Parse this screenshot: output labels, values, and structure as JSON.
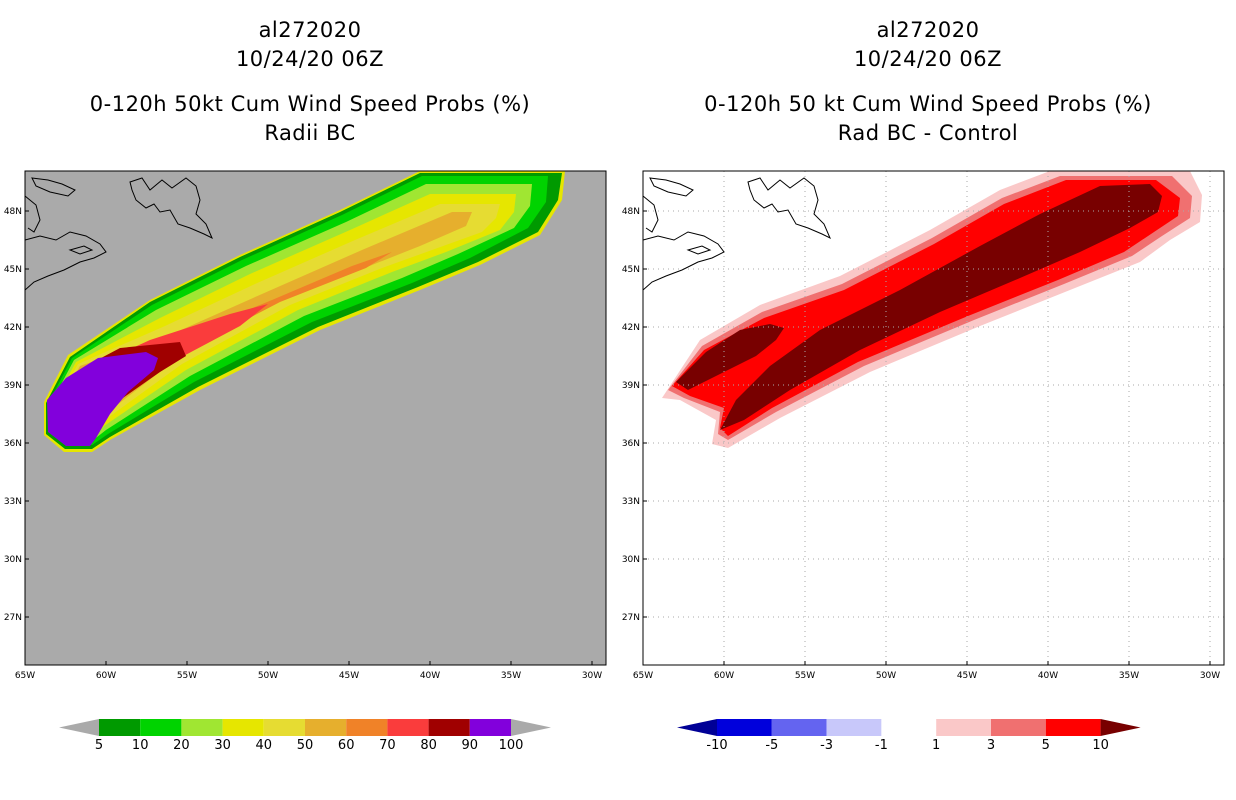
{
  "left_panel": {
    "title_lines": [
      "al272020",
      "10/24/20 06Z",
      "0-120h 50kt Cum Wind Speed Probs (%)",
      "Radii BC"
    ],
    "lat_labels": [
      "48N",
      "45N",
      "42N",
      "39N",
      "36N",
      "33N",
      "30N",
      "27N"
    ],
    "lon_labels": [
      "65W",
      "60W",
      "55W",
      "50W",
      "45W",
      "40W",
      "35W",
      "30W"
    ],
    "colorbar": {
      "labels": [
        "5",
        "10",
        "20",
        "30",
        "40",
        "50",
        "60",
        "70",
        "80",
        "90",
        "100"
      ],
      "colors": [
        "#009a00",
        "#00d300",
        "#a0e632",
        "#e6e600",
        "#e6dc32",
        "#e6af2d",
        "#f08228",
        "#fa3c3c",
        "#a00000",
        "#8200dc"
      ],
      "under_color": "#aaaaaa",
      "over_color": "#aaaaaa"
    }
  },
  "right_panel": {
    "title_lines": [
      "al272020",
      "10/24/20 06Z",
      "0-120h 50 kt Cum Wind Speed Probs (%)",
      "Rad BC - Control"
    ],
    "lat_labels": [
      "48N",
      "45N",
      "42N",
      "39N",
      "36N",
      "33N",
      "30N",
      "27N"
    ],
    "lon_labels": [
      "65W",
      "60W",
      "55W",
      "50W",
      "45W",
      "40W",
      "35W",
      "30W"
    ],
    "colorbar": {
      "labels": [
        "-10",
        "-5",
        "-3",
        "-1",
        "1",
        "3",
        "5",
        "10"
      ],
      "colors": [
        "#0000dc",
        "#6464f0",
        "#c8c8fa",
        "#ffffff",
        "#fac8c8",
        "#f07070",
        "#ff0000"
      ],
      "under_color": "#000096",
      "over_color": "#780000"
    }
  },
  "chart_data": [
    {
      "type": "map",
      "title": "0-120h 50kt Cum Wind Speed Probs (%)",
      "subtitle": "Radii BC",
      "storm": "al272020",
      "time": "10/24/20 06Z",
      "lon_range": [
        -65,
        -29
      ],
      "lat_range": [
        24.5,
        50
      ],
      "contour_levels": [
        5,
        10,
        20,
        30,
        40,
        50,
        60,
        70,
        80,
        90,
        100
      ],
      "background": "#aaaaaa"
    },
    {
      "type": "map",
      "title": "0-120h 50 kt Cum Wind Speed Probs (%)",
      "subtitle": "Rad BC - Control",
      "storm": "al272020",
      "time": "10/24/20 06Z",
      "lon_range": [
        -65,
        -29
      ],
      "lat_range": [
        24.5,
        50
      ],
      "contour_levels": [
        -10,
        -5,
        -3,
        -1,
        1,
        3,
        5,
        10
      ],
      "background": "#ffffff"
    }
  ]
}
